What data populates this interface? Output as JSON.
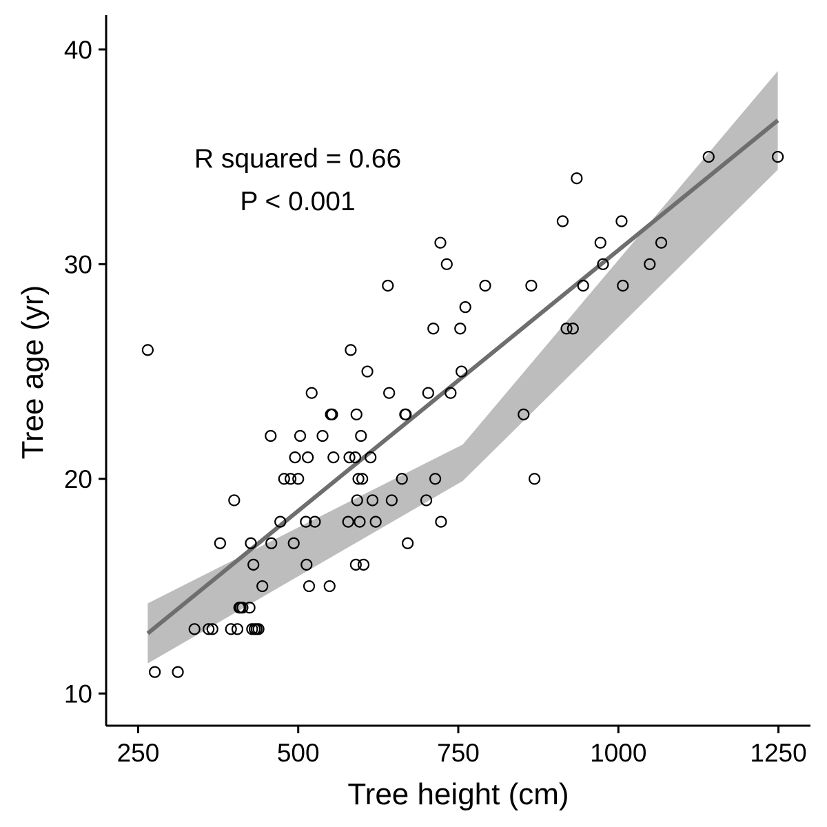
{
  "chart_data": {
    "type": "scatter",
    "title": "",
    "xlabel": "Tree height (cm)",
    "ylabel": "Tree age (yr)",
    "xlim": [
      200,
      1300
    ],
    "ylim": [
      8.5,
      41.6
    ],
    "xticks": [
      250,
      500,
      750,
      1000,
      1250
    ],
    "yticks": [
      10,
      20,
      30,
      40
    ],
    "grid": false,
    "legend": "none",
    "annotations": [
      "R squared = 0.66",
      "P < 0.001"
    ],
    "colors": {
      "points": "#000000",
      "fit_line": "#6e6e6e",
      "confidence_band": "#bdbdbd",
      "axes": "#000000"
    },
    "series": [
      {
        "x": [
          265,
          276,
          312,
          338,
          360,
          366,
          378,
          395,
          400,
          405,
          408,
          410,
          413,
          424,
          426,
          428,
          430,
          432,
          435,
          438,
          444,
          457,
          458,
          472,
          478,
          488,
          493,
          495,
          500,
          503,
          512,
          513,
          515,
          517,
          521,
          526,
          538,
          549,
          551,
          553,
          555,
          578,
          580,
          582,
          589,
          590,
          591,
          592,
          594,
          596,
          598,
          600,
          602,
          608,
          613,
          616,
          621,
          640,
          642,
          646,
          662,
          667,
          668,
          671,
          700,
          703,
          711,
          714,
          722,
          723,
          732,
          738,
          753,
          755,
          761,
          792,
          852,
          864,
          869,
          913,
          919,
          929,
          935,
          945,
          972,
          976,
          1005,
          1007,
          1049,
          1067,
          1141,
          1249
        ],
        "y": [
          26,
          11,
          11,
          13,
          13,
          13,
          17,
          13,
          19,
          13,
          14,
          14,
          14,
          14,
          17,
          13,
          16,
          13,
          13,
          13,
          15,
          22,
          17,
          18,
          20,
          20,
          17,
          21,
          20,
          22,
          18,
          16,
          21,
          15,
          24,
          18,
          22,
          15,
          23,
          23,
          21,
          18,
          21,
          26,
          21,
          16,
          23,
          19,
          20,
          18,
          22,
          20,
          16,
          25,
          21,
          19,
          18,
          29,
          24,
          19,
          20,
          23,
          23,
          17,
          19,
          24,
          27,
          20,
          31,
          18,
          30,
          24,
          27,
          25,
          28,
          29,
          23,
          29,
          20,
          32,
          27,
          27,
          34,
          29,
          31,
          30,
          32,
          29,
          30,
          31,
          35,
          35
        ]
      }
    ],
    "fit": {
      "x_start": 265,
      "x_end": 1249,
      "y_start": 12.8,
      "y_end": 36.7,
      "ci_lower_start": 11.4,
      "ci_upper_start": 14.2,
      "ci_lower_mid": 19.9,
      "ci_upper_mid": 21.6,
      "ci_lower_end": 34.4,
      "ci_upper_end": 39.0
    }
  }
}
